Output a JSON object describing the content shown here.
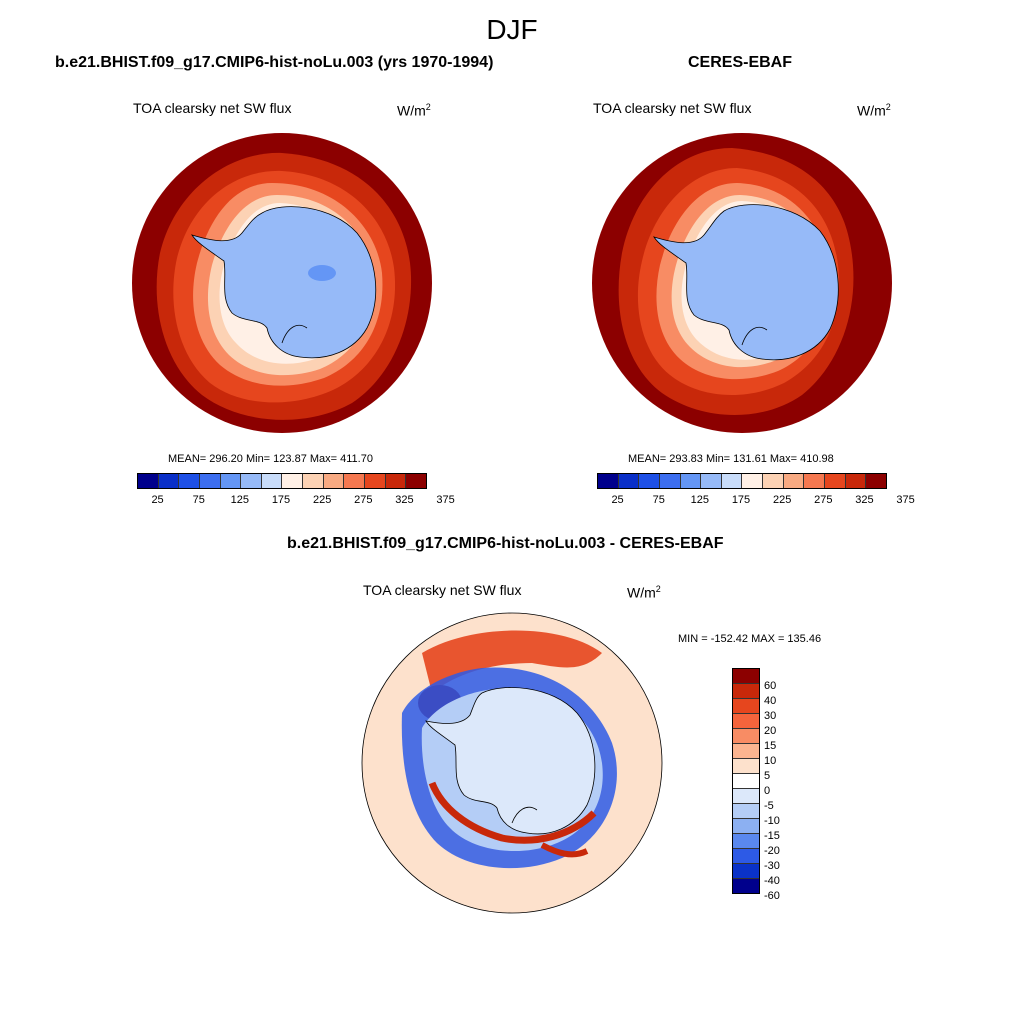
{
  "season": "DJF",
  "left_panel": {
    "title": "b.e21.BHIST.f09_g17.CMIP6-hist-noLu.003 (yrs 1970-1994)",
    "variable": "TOA clearsky net SW flux",
    "unit_base": "W/m",
    "unit_exp": "2",
    "stats": "MEAN= 296.20  Min= 123.87  Max= 411.70"
  },
  "right_panel": {
    "title": "CERES-EBAF",
    "variable": "TOA clearsky net SW flux",
    "unit_base": "W/m",
    "unit_exp": "2",
    "stats": "MEAN= 293.83  Min= 131.61  Max= 410.98"
  },
  "diff_panel": {
    "title": "b.e21.BHIST.f09_g17.CMIP6-hist-noLu.003 - CERES-EBAF",
    "variable": "TOA clearsky net SW flux",
    "unit_base": "W/m",
    "unit_exp": "2",
    "minmax": "MIN = -152.42 MAX = 135.46"
  },
  "colorbar_abs": {
    "colors": [
      "#00008c",
      "#0a2fc8",
      "#1e50e6",
      "#3c6ef0",
      "#6496f5",
      "#96baf8",
      "#c8dcfa",
      "#fff0e6",
      "#fcd2b4",
      "#f8aa82",
      "#f57850",
      "#e6461e",
      "#c8280a",
      "#8c0000"
    ],
    "tick_labels": [
      "25",
      "75",
      "125",
      "175",
      "225",
      "275",
      "325",
      "375"
    ]
  },
  "colorbar_diff": {
    "colors": [
      "#8c0000",
      "#c8280a",
      "#e6461e",
      "#f5643c",
      "#f88c64",
      "#fbb490",
      "#fde1cc",
      "#ffffff",
      "#dce8fa",
      "#b4cdf6",
      "#8cb0f2",
      "#5a88ee",
      "#2d5ae6",
      "#0a32c8",
      "#00008c"
    ],
    "labels": [
      "60",
      "40",
      "30",
      "20",
      "15",
      "10",
      "5",
      "0",
      "-5",
      "-10",
      "-15",
      "-20",
      "-30",
      "-40",
      "-60"
    ]
  }
}
